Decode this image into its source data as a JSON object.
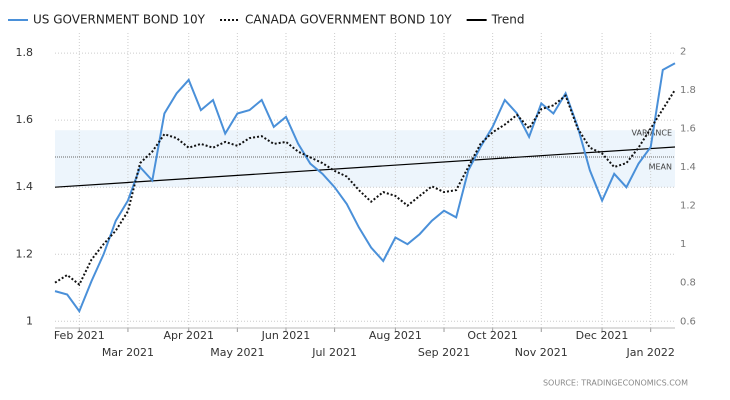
{
  "chart_data": {
    "type": "line",
    "categories": [
      null,
      null,
      "Feb 2021",
      null,
      null,
      null,
      "Mar 2021",
      null,
      null,
      null,
      null,
      "Apr 2021",
      null,
      null,
      null,
      "May 2021",
      null,
      null,
      null,
      "Jun 2021",
      null,
      null,
      null,
      "Jul 2021",
      null,
      null,
      null,
      null,
      "Aug 2021",
      null,
      null,
      null,
      "Sep 2021",
      null,
      null,
      null,
      "Oct 2021",
      null,
      null,
      null,
      "Nov 2021",
      null,
      null,
      null,
      null,
      "Dec 2021",
      null,
      null,
      null,
      "Jan 2022",
      null,
      null
    ],
    "series": [
      {
        "name": "US GOVERNMENT BOND 10Y",
        "color": "#4a90d9",
        "axis": "y",
        "values": [
          1.09,
          1.08,
          1.03,
          1.12,
          1.2,
          1.3,
          1.36,
          1.46,
          1.42,
          1.62,
          1.68,
          1.72,
          1.63,
          1.66,
          1.56,
          1.62,
          1.63,
          1.66,
          1.58,
          1.61,
          1.53,
          1.47,
          1.44,
          1.4,
          1.35,
          1.28,
          1.22,
          1.18,
          1.25,
          1.23,
          1.26,
          1.3,
          1.33,
          1.31,
          1.45,
          1.52,
          1.58,
          1.66,
          1.62,
          1.55,
          1.65,
          1.62,
          1.68,
          1.58,
          1.45,
          1.36,
          1.44,
          1.4,
          1.47,
          1.52,
          1.75,
          1.77
        ]
      },
      {
        "name": "CANADA GOVERNMENT BOND 10Y",
        "color": "#111111",
        "axis": "y2",
        "values": [
          0.8,
          0.84,
          0.79,
          0.92,
          1.0,
          1.07,
          1.17,
          1.42,
          1.48,
          1.57,
          1.55,
          1.5,
          1.52,
          1.5,
          1.53,
          1.51,
          1.55,
          1.56,
          1.52,
          1.53,
          1.48,
          1.45,
          1.42,
          1.38,
          1.35,
          1.28,
          1.22,
          1.27,
          1.25,
          1.2,
          1.25,
          1.3,
          1.27,
          1.28,
          1.4,
          1.52,
          1.58,
          1.62,
          1.67,
          1.6,
          1.7,
          1.72,
          1.77,
          1.6,
          1.5,
          1.47,
          1.4,
          1.42,
          1.5,
          1.6,
          1.7,
          1.8
        ]
      }
    ],
    "trend": {
      "name": "Trend",
      "color": "#000000",
      "values": [
        1.4,
        1.52
      ]
    },
    "mean": {
      "label": "MEAN",
      "value": 1.49
    },
    "variance": {
      "label": "VARIANCE",
      "range": [
        1.4,
        1.57
      ]
    },
    "ylim": [
      0.98,
      1.86
    ],
    "yticks": [
      1,
      1.2,
      1.4,
      1.6,
      1.8
    ],
    "y2lim": [
      0.565,
      2.095
    ],
    "y2ticks": [
      0.6,
      0.8,
      1,
      1.2,
      1.4,
      1.6,
      1.8,
      2
    ],
    "grid": true,
    "source": "SOURCE:  TRADINGECONOMICS.COM"
  }
}
